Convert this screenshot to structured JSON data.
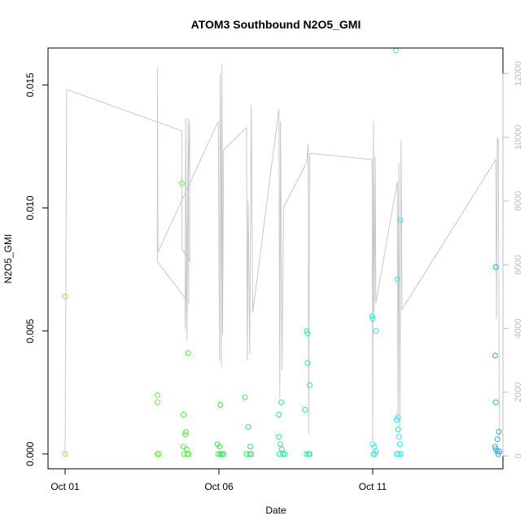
{
  "chart_data": {
    "type": "scatter",
    "title": "ATOM3 Southbound N2O5_GMI",
    "xlabel": "Date",
    "ylabel": "N2O5_GMI",
    "xlim": [
      "2017-10-01",
      "2017-10-15"
    ],
    "ylim": [
      -0.0006,
      0.0165
    ],
    "y_ticks": [
      0.0,
      0.005,
      0.01,
      0.015
    ],
    "y_tick_labels": [
      "0.000",
      "0.005",
      "0.010",
      "0.015"
    ],
    "x_ticks": [
      "2017-10-01",
      "2017-10-06",
      "2017-10-11"
    ],
    "x_tick_labels": [
      "Oct 01",
      "Oct 06",
      "Oct 11"
    ],
    "y2_ticks": [
      0,
      2000,
      4000,
      6000,
      8000,
      10000,
      12000
    ],
    "y2_tick_labels": [
      "0",
      "2000",
      "4000",
      "6000",
      "8000",
      "10000",
      "12000"
    ],
    "y2lim": [
      -400,
      12800
    ],
    "grid": false,
    "legend": "none",
    "colors": {
      "line": "#c8c8c8",
      "frame": "#000000",
      "right_axis": "#bdbdbd"
    },
    "points": [
      {
        "x": 0.0,
        "y": 0.0064,
        "c": "#8be84a"
      },
      {
        "x": 0.0,
        "y": 0.0,
        "c": "#8be84a"
      },
      {
        "x": 3.0,
        "y": 0.0024,
        "c": "#6ee84a"
      },
      {
        "x": 3.0,
        "y": 0.0021,
        "c": "#6ee84a"
      },
      {
        "x": 3.0,
        "y": 0.0,
        "c": "#6ee84a"
      },
      {
        "x": 3.05,
        "y": 0.0,
        "c": "#6ee84a"
      },
      {
        "x": 3.8,
        "y": 0.011,
        "c": "#55ea46"
      },
      {
        "x": 3.85,
        "y": 0.0016,
        "c": "#55ea46"
      },
      {
        "x": 3.85,
        "y": 0.0003,
        "c": "#55ea46"
      },
      {
        "x": 3.87,
        "y": 0.0,
        "c": "#55ea46"
      },
      {
        "x": 3.9,
        "y": 0.0008,
        "c": "#55ea46"
      },
      {
        "x": 3.93,
        "y": 0.0009,
        "c": "#55ea46"
      },
      {
        "x": 3.95,
        "y": 0.0002,
        "c": "#55ea46"
      },
      {
        "x": 3.97,
        "y": 0.0,
        "c": "#55ea46"
      },
      {
        "x": 4.0,
        "y": 0.0041,
        "c": "#55ea46"
      },
      {
        "x": 4.02,
        "y": 0.0,
        "c": "#55ea46"
      },
      {
        "x": 4.95,
        "y": 0.0004,
        "c": "#2fe84a"
      },
      {
        "x": 4.98,
        "y": 0.0,
        "c": "#2fe84a"
      },
      {
        "x": 5.02,
        "y": 0.0003,
        "c": "#2fe84a"
      },
      {
        "x": 5.05,
        "y": 0.002,
        "c": "#2fe84a"
      },
      {
        "x": 5.05,
        "y": 0.0,
        "c": "#2fe84a"
      },
      {
        "x": 5.1,
        "y": 0.0,
        "c": "#2fe84a"
      },
      {
        "x": 5.15,
        "y": 0.0,
        "c": "#2fe84a"
      },
      {
        "x": 5.85,
        "y": 0.0023,
        "c": "#2de86a"
      },
      {
        "x": 5.9,
        "y": 0.0,
        "c": "#2de86a"
      },
      {
        "x": 5.95,
        "y": 0.0011,
        "c": "#2de86a"
      },
      {
        "x": 6.0,
        "y": 0.0,
        "c": "#2de86a"
      },
      {
        "x": 6.02,
        "y": 0.0003,
        "c": "#2de86a"
      },
      {
        "x": 6.05,
        "y": 0.0,
        "c": "#2de86a"
      },
      {
        "x": 6.95,
        "y": 0.0016,
        "c": "#2de88a"
      },
      {
        "x": 6.95,
        "y": 0.0007,
        "c": "#2de88a"
      },
      {
        "x": 6.97,
        "y": 0.0,
        "c": "#2de88a"
      },
      {
        "x": 7.0,
        "y": 0.0004,
        "c": "#2de88a"
      },
      {
        "x": 7.02,
        "y": 0.0021,
        "c": "#2de88a"
      },
      {
        "x": 7.05,
        "y": 0.0002,
        "c": "#2de88a"
      },
      {
        "x": 7.08,
        "y": 0.0,
        "c": "#2de88a"
      },
      {
        "x": 7.15,
        "y": 0.0,
        "c": "#2de88a"
      },
      {
        "x": 7.8,
        "y": 0.0018,
        "c": "#2de8a8"
      },
      {
        "x": 7.85,
        "y": 0.0,
        "c": "#2de8a8"
      },
      {
        "x": 7.85,
        "y": 0.005,
        "c": "#2de8a8"
      },
      {
        "x": 7.88,
        "y": 0.0049,
        "c": "#2de8a8"
      },
      {
        "x": 7.88,
        "y": 0.0037,
        "c": "#2de8a8"
      },
      {
        "x": 7.92,
        "y": 0.0,
        "c": "#2de8a8"
      },
      {
        "x": 7.95,
        "y": 0.0028,
        "c": "#2de8a8"
      },
      {
        "x": 7.95,
        "y": 0.0,
        "c": "#2de8a8"
      },
      {
        "x": 9.98,
        "y": 0.0056,
        "c": "#2de8e0"
      },
      {
        "x": 10.0,
        "y": 0.0055,
        "c": "#2de8e0"
      },
      {
        "x": 10.0,
        "y": 0.0004,
        "c": "#2de8e0"
      },
      {
        "x": 10.02,
        "y": 0.0,
        "c": "#2de8e0"
      },
      {
        "x": 10.05,
        "y": 0.0003,
        "c": "#2de8e0"
      },
      {
        "x": 10.07,
        "y": 0.0,
        "c": "#2de8e0"
      },
      {
        "x": 10.1,
        "y": 0.005,
        "c": "#2de8e0"
      },
      {
        "x": 10.1,
        "y": 0.0001,
        "c": "#2de8e0"
      },
      {
        "x": 10.75,
        "y": 0.0164,
        "c": "#2de8ea"
      },
      {
        "x": 10.78,
        "y": 0.0014,
        "c": "#2de8ea"
      },
      {
        "x": 10.8,
        "y": 0.0071,
        "c": "#2de8ea"
      },
      {
        "x": 10.82,
        "y": 0.0015,
        "c": "#2de8ea"
      },
      {
        "x": 10.82,
        "y": 0.001,
        "c": "#2de8ea"
      },
      {
        "x": 10.85,
        "y": 0.0007,
        "c": "#2de8ea"
      },
      {
        "x": 10.85,
        "y": 0.0,
        "c": "#2de8ea"
      },
      {
        "x": 10.88,
        "y": 0.0004,
        "c": "#2de8ea"
      },
      {
        "x": 10.9,
        "y": 0.0095,
        "c": "#2de8ea"
      },
      {
        "x": 10.92,
        "y": 0.0,
        "c": "#2de8ea"
      },
      {
        "x": 10.78,
        "y": 0.0,
        "c": "#2de8ea"
      },
      {
        "x": 14.0,
        "y": 0.0076,
        "c": "#2da8e8"
      },
      {
        "x": 13.98,
        "y": 0.004,
        "c": "#2da8e8"
      },
      {
        "x": 14.0,
        "y": 0.0021,
        "c": "#2da8e8"
      },
      {
        "x": 14.05,
        "y": 0.0006,
        "c": "#2da8e8"
      },
      {
        "x": 14.1,
        "y": 0.0009,
        "c": "#2da8e8"
      },
      {
        "x": 13.97,
        "y": 0.0003,
        "c": "#2da8e8"
      },
      {
        "x": 14.0,
        "y": 0.0002,
        "c": "#2da8e8"
      },
      {
        "x": 14.05,
        "y": 0.0001,
        "c": "#2da8e8"
      },
      {
        "x": 14.08,
        "y": 0.0,
        "c": "#2da8e8"
      },
      {
        "x": 14.12,
        "y": 0.0001,
        "c": "#2da8e8"
      }
    ],
    "line_series": [
      [
        0.0,
        0
      ],
      [
        0.05,
        11500
      ],
      [
        3.8,
        10200
      ],
      [
        3.8,
        6500
      ],
      [
        4.05,
        6100
      ],
      [
        4.05,
        10500
      ],
      [
        3.9,
        4000
      ],
      [
        3.92,
        10600
      ],
      [
        3.96,
        3600
      ],
      [
        4.0,
        10600
      ],
      [
        4.02,
        4800
      ],
      [
        3.0,
        6100
      ],
      [
        3.0,
        12200
      ],
      [
        3.02,
        6400
      ],
      [
        4.98,
        10500
      ],
      [
        5.02,
        3000
      ],
      [
        5.04,
        12000
      ],
      [
        5.06,
        9800
      ],
      [
        5.08,
        2800
      ],
      [
        5.1,
        12300
      ],
      [
        5.12,
        3800
      ],
      [
        5.15,
        9600
      ],
      [
        5.9,
        10300
      ],
      [
        5.92,
        3000
      ],
      [
        5.95,
        8000
      ],
      [
        6.0,
        3200
      ],
      [
        6.05,
        11000
      ],
      [
        6.1,
        4500
      ],
      [
        6.95,
        10900
      ],
      [
        6.98,
        1800
      ],
      [
        7.0,
        10500
      ],
      [
        7.05,
        2700
      ],
      [
        7.1,
        7800
      ],
      [
        7.85,
        9200
      ],
      [
        7.9,
        9800
      ],
      [
        7.92,
        700
      ],
      [
        7.95,
        9500
      ],
      [
        9.98,
        9300
      ],
      [
        10.0,
        500
      ],
      [
        10.02,
        10500
      ],
      [
        10.05,
        4500
      ],
      [
        10.08,
        9400
      ],
      [
        10.1,
        4800
      ],
      [
        10.8,
        8600
      ],
      [
        10.82,
        1200
      ],
      [
        10.85,
        9200
      ],
      [
        10.88,
        800
      ],
      [
        10.92,
        9900
      ],
      [
        10.95,
        4600
      ],
      [
        14.0,
        9300
      ],
      [
        14.02,
        4300
      ],
      [
        14.05,
        10000
      ],
      [
        14.08,
        9900
      ],
      [
        14.12,
        500
      ]
    ]
  }
}
